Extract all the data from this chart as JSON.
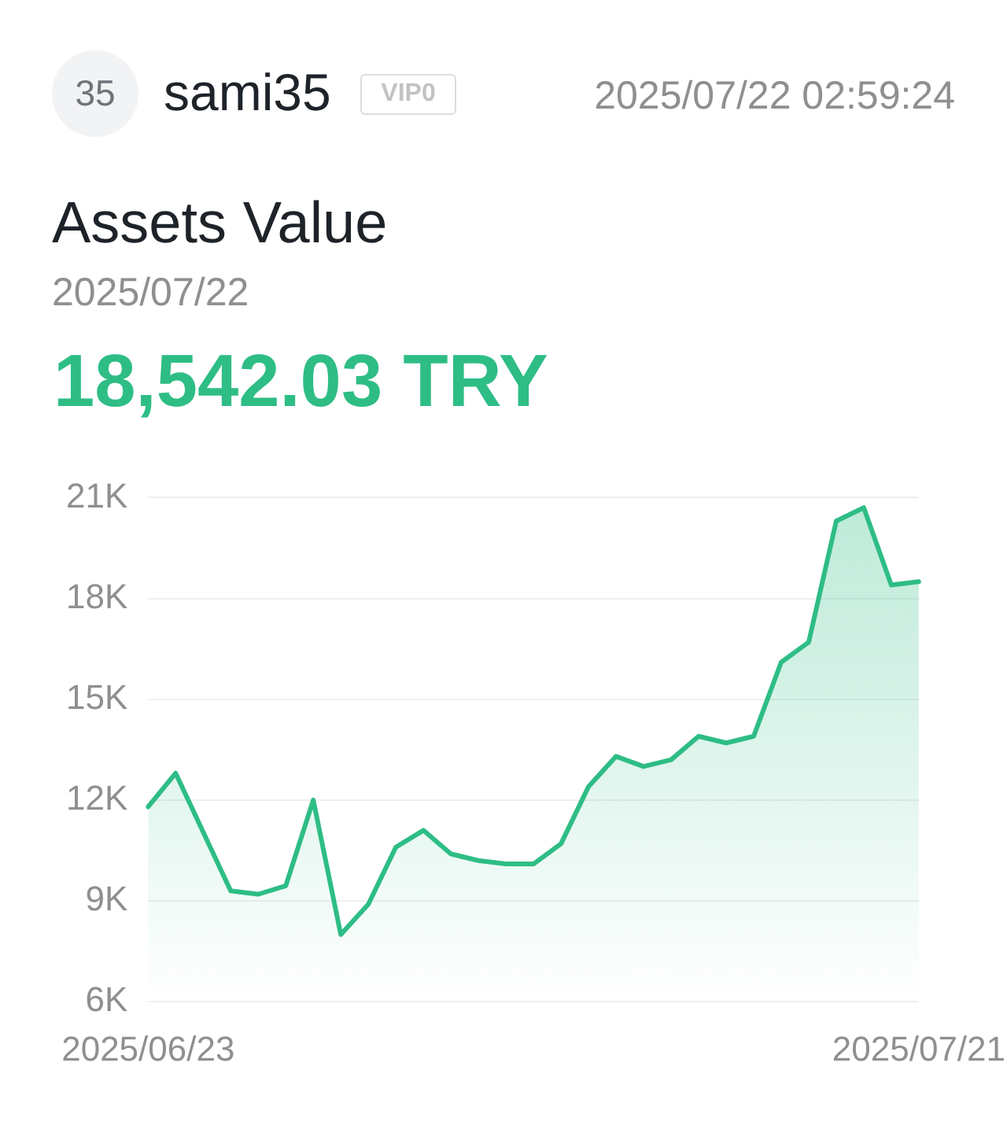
{
  "chart_data": {
    "type": "area",
    "title": "Assets Value",
    "subtitle": "2025/07/22",
    "annotations": [
      "35",
      "sami35",
      "VIP0",
      "2025/07/22 02:59:24",
      "18,542.03 TRY"
    ],
    "categories": [
      "2025/06/23",
      null,
      null,
      null,
      null,
      null,
      null,
      null,
      null,
      null,
      null,
      null,
      null,
      null,
      null,
      null,
      null,
      null,
      null,
      null,
      null,
      null,
      null,
      null,
      null,
      null,
      null,
      null,
      "2025/07/21"
    ],
    "series": [
      {
        "color": "#2ebd85",
        "values": [
          11800,
          12800,
          11050,
          9300,
          9200,
          9450,
          12000,
          8000,
          8900,
          10600,
          11100,
          10400,
          10200,
          10100,
          10100,
          10700,
          12400,
          13300,
          13000,
          13200,
          13900,
          13700,
          13900,
          16100,
          16700,
          20300,
          20700,
          18400,
          18500
        ]
      }
    ],
    "ylim": [
      6000,
      21000
    ],
    "yticks": [
      {
        "value": 6000,
        "label": "6K"
      },
      {
        "value": 9000,
        "label": "9K"
      },
      {
        "value": 12000,
        "label": "12K"
      },
      {
        "value": 15000,
        "label": "15K"
      },
      {
        "value": 18000,
        "label": "18K"
      },
      {
        "value": 21000,
        "label": "21K"
      }
    ],
    "grid": "y",
    "legend": false
  }
}
